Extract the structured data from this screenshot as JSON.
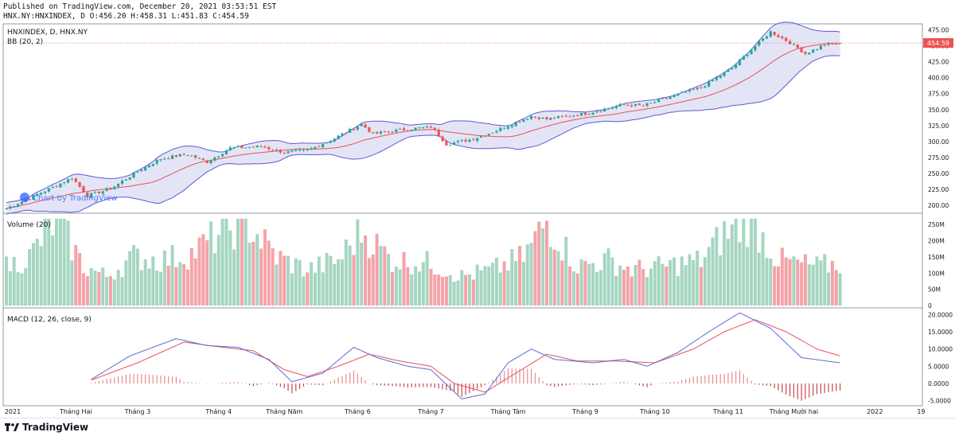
{
  "header": {
    "published": "Published on TradingView.com, December 20, 2021 03:53:51 EST",
    "ohlc": "HNX.NY:HNXINDEX, D O:456.20 H:458.31 L:451.83 C:454.59"
  },
  "panes": {
    "price": {
      "title": "HNXINDEX, D, HNX.NY",
      "indicator": "BB (20, 2)",
      "last_price_label": "454.59",
      "ticks": [
        "475.00",
        "450.00",
        "425.00",
        "400.00",
        "375.00",
        "350.00",
        "325.00",
        "300.00",
        "275.00",
        "250.00",
        "225.00",
        "200.00"
      ]
    },
    "volume": {
      "title": "Volume (20)",
      "ticks": [
        "250M",
        "200M",
        "150M",
        "100M",
        "50M",
        "0"
      ]
    },
    "macd": {
      "title": "MACD (12, 26, close, 9)",
      "ticks": [
        "20.0000",
        "15.0000",
        "10.0000",
        "5.0000",
        "0.0000",
        "-5.0000"
      ]
    }
  },
  "watermark": "Chart by TradingView",
  "footer_brand": "TradingView",
  "colors": {
    "up": "#26a69a",
    "down": "#ef5350",
    "bb_fill": "#d1d4f0",
    "bb_band": "#5b5bd6",
    "bb_basis": "#e8505b",
    "macd_line": "#5b6bd6",
    "signal_line": "#e8505b",
    "vol_up": "#a5d6c1",
    "vol_down": "#f5a3a8"
  },
  "chart_data": {
    "type": "candlestick",
    "x_labels": [
      "2021",
      "Tháng Hai",
      "Tháng 3",
      "Tháng 4",
      "Tháng Năm",
      "Tháng 6",
      "Tháng 7",
      "Tháng Tám",
      "Tháng 9",
      "Tháng 10",
      "Tháng 11",
      "Tháng Mười hai",
      "2022",
      "19"
    ],
    "price_ylim": [
      190,
      482
    ],
    "price_keypoints": [
      {
        "x": 0,
        "y": 195
      },
      {
        "x": 12,
        "y": 228
      },
      {
        "x": 17,
        "y": 243
      },
      {
        "x": 21,
        "y": 215
      },
      {
        "x": 27,
        "y": 226
      },
      {
        "x": 35,
        "y": 257
      },
      {
        "x": 40,
        "y": 273
      },
      {
        "x": 47,
        "y": 280
      },
      {
        "x": 52,
        "y": 268
      },
      {
        "x": 58,
        "y": 290
      },
      {
        "x": 66,
        "y": 292
      },
      {
        "x": 72,
        "y": 283
      },
      {
        "x": 78,
        "y": 286
      },
      {
        "x": 85,
        "y": 305
      },
      {
        "x": 92,
        "y": 327
      },
      {
        "x": 95,
        "y": 312
      },
      {
        "x": 102,
        "y": 318
      },
      {
        "x": 110,
        "y": 323
      },
      {
        "x": 114,
        "y": 296
      },
      {
        "x": 121,
        "y": 304
      },
      {
        "x": 126,
        "y": 315
      },
      {
        "x": 136,
        "y": 340
      },
      {
        "x": 140,
        "y": 335
      },
      {
        "x": 150,
        "y": 344
      },
      {
        "x": 160,
        "y": 358
      },
      {
        "x": 165,
        "y": 356
      },
      {
        "x": 172,
        "y": 370
      },
      {
        "x": 180,
        "y": 385
      },
      {
        "x": 188,
        "y": 415
      },
      {
        "x": 194,
        "y": 450
      },
      {
        "x": 198,
        "y": 472
      },
      {
        "x": 203,
        "y": 455
      },
      {
        "x": 207,
        "y": 438
      },
      {
        "x": 212,
        "y": 452
      },
      {
        "x": 216,
        "y": 454.59
      }
    ],
    "volume_keypoints": [
      {
        "x": 0,
        "y": 120
      },
      {
        "x": 6,
        "y": 150
      },
      {
        "x": 13,
        "y": 270
      },
      {
        "x": 20,
        "y": 120
      },
      {
        "x": 26,
        "y": 90
      },
      {
        "x": 33,
        "y": 150
      },
      {
        "x": 40,
        "y": 140
      },
      {
        "x": 48,
        "y": 160
      },
      {
        "x": 55,
        "y": 220
      },
      {
        "x": 62,
        "y": 260
      },
      {
        "x": 70,
        "y": 150
      },
      {
        "x": 78,
        "y": 110
      },
      {
        "x": 86,
        "y": 140
      },
      {
        "x": 92,
        "y": 230
      },
      {
        "x": 100,
        "y": 140
      },
      {
        "x": 110,
        "y": 130
      },
      {
        "x": 118,
        "y": 90
      },
      {
        "x": 126,
        "y": 110
      },
      {
        "x": 134,
        "y": 150
      },
      {
        "x": 140,
        "y": 260
      },
      {
        "x": 148,
        "y": 120
      },
      {
        "x": 156,
        "y": 140
      },
      {
        "x": 162,
        "y": 110
      },
      {
        "x": 170,
        "y": 120
      },
      {
        "x": 180,
        "y": 140
      },
      {
        "x": 186,
        "y": 220
      },
      {
        "x": 193,
        "y": 260
      },
      {
        "x": 200,
        "y": 140
      },
      {
        "x": 210,
        "y": 120
      },
      {
        "x": 216,
        "y": 130
      }
    ],
    "macd_ylim": [
      -6,
      21
    ],
    "macd_keypoints": [
      {
        "x": 22,
        "y": 1.2
      },
      {
        "x": 32,
        "y": 8
      },
      {
        "x": 44,
        "y": 13
      },
      {
        "x": 52,
        "y": 11
      },
      {
        "x": 60,
        "y": 10.5
      },
      {
        "x": 68,
        "y": 7
      },
      {
        "x": 74,
        "y": 0.5
      },
      {
        "x": 82,
        "y": 3
      },
      {
        "x": 90,
        "y": 10.5
      },
      {
        "x": 96,
        "y": 7.5
      },
      {
        "x": 104,
        "y": 5
      },
      {
        "x": 110,
        "y": 4
      },
      {
        "x": 118,
        "y": -4.5
      },
      {
        "x": 124,
        "y": -3
      },
      {
        "x": 130,
        "y": 6
      },
      {
        "x": 136,
        "y": 10
      },
      {
        "x": 142,
        "y": 7
      },
      {
        "x": 152,
        "y": 6
      },
      {
        "x": 160,
        "y": 7
      },
      {
        "x": 166,
        "y": 5
      },
      {
        "x": 174,
        "y": 9
      },
      {
        "x": 182,
        "y": 15
      },
      {
        "x": 190,
        "y": 20.5
      },
      {
        "x": 198,
        "y": 16
      },
      {
        "x": 206,
        "y": 7.5
      },
      {
        "x": 216,
        "y": 6
      }
    ],
    "signal_keypoints": [
      {
        "x": 22,
        "y": 1
      },
      {
        "x": 34,
        "y": 6
      },
      {
        "x": 46,
        "y": 12
      },
      {
        "x": 56,
        "y": 10.5
      },
      {
        "x": 64,
        "y": 9.5
      },
      {
        "x": 72,
        "y": 4
      },
      {
        "x": 78,
        "y": 2
      },
      {
        "x": 86,
        "y": 5
      },
      {
        "x": 94,
        "y": 8.5
      },
      {
        "x": 102,
        "y": 6.5
      },
      {
        "x": 110,
        "y": 5
      },
      {
        "x": 116,
        "y": 0
      },
      {
        "x": 124,
        "y": -2.5
      },
      {
        "x": 132,
        "y": 3
      },
      {
        "x": 140,
        "y": 8.5
      },
      {
        "x": 148,
        "y": 6.5
      },
      {
        "x": 158,
        "y": 6.5
      },
      {
        "x": 168,
        "y": 6
      },
      {
        "x": 178,
        "y": 10
      },
      {
        "x": 186,
        "y": 15
      },
      {
        "x": 194,
        "y": 18.5
      },
      {
        "x": 202,
        "y": 15
      },
      {
        "x": 210,
        "y": 10
      },
      {
        "x": 216,
        "y": 8
      }
    ]
  }
}
